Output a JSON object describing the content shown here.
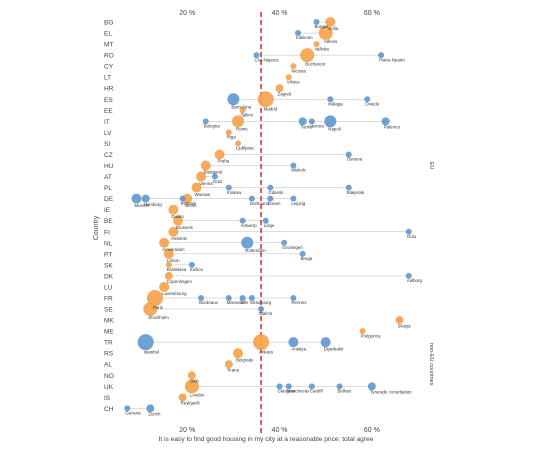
{
  "chart_data": {
    "type": "scatter",
    "xlabel": "It is easy to find good housing in my city at a reasonable price: total agree",
    "ylabel": "Country",
    "xlim": [
      5,
      70
    ],
    "x_ticks": [
      "20 %",
      "40 %",
      "60 %"
    ],
    "x_tick_values": [
      20,
      40,
      60
    ],
    "reference_line": {
      "x": 36,
      "style": "dashed",
      "color": "#d62728"
    },
    "group_labels": [
      {
        "text": "EU",
        "from": "BG",
        "to": "SE"
      },
      {
        "text": "non-EU countries",
        "from": "MK",
        "to": "CH"
      }
    ],
    "countries": [
      "BG",
      "EL",
      "MT",
      "RO",
      "CY",
      "LT",
      "HR",
      "ES",
      "EE",
      "IT",
      "LV",
      "SI",
      "CZ",
      "HU",
      "AT",
      "PL",
      "DE",
      "IE",
      "BE",
      "FI",
      "NL",
      "PT",
      "SK",
      "DK",
      "LU",
      "FR",
      "SE",
      "MK",
      "ME",
      "TR",
      "RS",
      "AL",
      "NO",
      "UK",
      "IS",
      "CH"
    ],
    "colors": {
      "capital": "#f5a14a",
      "other": "#5e97cf",
      "reference": "#d62728",
      "grid": "#bbbbbb",
      "text": "#444444"
    },
    "cities": [
      {
        "city": "Sofia",
        "country": "BG",
        "x": 51,
        "size": 5,
        "type": "capital"
      },
      {
        "city": "Burgas",
        "country": "BG",
        "x": 48,
        "size": 3,
        "type": "other"
      },
      {
        "city": "Athens",
        "country": "EL",
        "x": 50,
        "size": 7,
        "type": "capital"
      },
      {
        "city": "Irakleion",
        "country": "EL",
        "x": 44,
        "size": 3,
        "type": "other"
      },
      {
        "city": "Valletta",
        "country": "MT",
        "x": 48,
        "size": 3,
        "type": "capital"
      },
      {
        "city": "Cluj-Napoca",
        "country": "RO",
        "x": 35,
        "size": 3,
        "type": "other"
      },
      {
        "city": "Bucharest",
        "country": "RO",
        "x": 46,
        "size": 7,
        "type": "capital"
      },
      {
        "city": "Piatra Neamt",
        "country": "RO",
        "x": 62,
        "size": 3,
        "type": "other"
      },
      {
        "city": "Nicosia",
        "country": "CY",
        "x": 43,
        "size": 3,
        "type": "capital"
      },
      {
        "city": "Vilnius",
        "country": "LT",
        "x": 42,
        "size": 3,
        "type": "capital"
      },
      {
        "city": "Zagreb",
        "country": "HR",
        "x": 40,
        "size": 4,
        "type": "capital"
      },
      {
        "city": "Barcelona",
        "country": "ES",
        "x": 30,
        "size": 6,
        "type": "other"
      },
      {
        "city": "Madrid",
        "country": "ES",
        "x": 37,
        "size": 8,
        "type": "capital"
      },
      {
        "city": "Málaga",
        "country": "ES",
        "x": 51,
        "size": 3,
        "type": "other"
      },
      {
        "city": "Oviedo",
        "country": "ES",
        "x": 59,
        "size": 3,
        "type": "other"
      },
      {
        "city": "Tallinn",
        "country": "EE",
        "x": 32,
        "size": 3,
        "type": "capital"
      },
      {
        "city": "Rome",
        "country": "IT",
        "x": 31,
        "size": 6,
        "type": "capital"
      },
      {
        "city": "Torino",
        "country": "IT",
        "x": 45,
        "size": 4,
        "type": "other"
      },
      {
        "city": "Napoli",
        "country": "IT",
        "x": 51,
        "size": 6,
        "type": "other"
      },
      {
        "city": "Palermo",
        "country": "IT",
        "x": 63,
        "size": 4,
        "type": "other"
      },
      {
        "city": "Bologna",
        "country": "IT",
        "x": 24,
        "size": 3,
        "type": "other"
      },
      {
        "city": "Verona",
        "country": "IT",
        "x": 47,
        "size": 3,
        "type": "other"
      },
      {
        "city": "Riga",
        "country": "LV",
        "x": 29,
        "size": 3,
        "type": "capital"
      },
      {
        "city": "Ljubljana",
        "country": "SI",
        "x": 31,
        "size": 3,
        "type": "capital"
      },
      {
        "city": "Ostrava",
        "country": "CZ",
        "x": 55,
        "size": 3,
        "type": "other"
      },
      {
        "city": "Praha",
        "country": "CZ",
        "x": 27,
        "size": 5,
        "type": "capital"
      },
      {
        "city": "Miskolc",
        "country": "HU",
        "x": 43,
        "size": 3,
        "type": "other"
      },
      {
        "city": "Budapest",
        "country": "HU",
        "x": 24,
        "size": 5,
        "type": "capital"
      },
      {
        "city": "Graz",
        "country": "AT",
        "x": 26,
        "size": 3,
        "type": "other"
      },
      {
        "city": "Vienna",
        "country": "AT",
        "x": 23,
        "size": 5,
        "type": "capital"
      },
      {
        "city": "Warsaw",
        "country": "PL",
        "x": 22,
        "size": 5,
        "type": "capital"
      },
      {
        "city": "Gdansk",
        "country": "PL",
        "x": 38,
        "size": 3,
        "type": "other"
      },
      {
        "city": "Białystok",
        "country": "PL",
        "x": 55,
        "size": 3,
        "type": "other"
      },
      {
        "city": "Krakow",
        "country": "PL",
        "x": 29,
        "size": 3,
        "type": "other"
      },
      {
        "city": "Hamburg",
        "country": "DE",
        "x": 11,
        "size": 4,
        "type": "other"
      },
      {
        "city": "Rostock",
        "country": "DE",
        "x": 19,
        "size": 3,
        "type": "other"
      },
      {
        "city": "Essen",
        "country": "DE",
        "x": 38,
        "size": 3,
        "type": "other"
      },
      {
        "city": "Leipzig",
        "country": "DE",
        "x": 43,
        "size": 3,
        "type": "other"
      },
      {
        "city": "Munich",
        "country": "DE",
        "x": 9,
        "size": 5,
        "type": "other"
      },
      {
        "city": "Berlin",
        "country": "DE",
        "x": 20,
        "size": 5,
        "type": "capital"
      },
      {
        "city": "Dortmund",
        "country": "DE",
        "x": 34,
        "size": 3,
        "type": "other"
      },
      {
        "city": "Dublin",
        "country": "IE",
        "x": 17,
        "size": 5,
        "type": "capital"
      },
      {
        "city": "Antwerp",
        "country": "BE",
        "x": 32,
        "size": 3,
        "type": "other"
      },
      {
        "city": "Brussels",
        "country": "BE",
        "x": 18,
        "size": 5,
        "type": "capital"
      },
      {
        "city": "Liège",
        "country": "BE",
        "x": 37,
        "size": 3,
        "type": "other"
      },
      {
        "city": "Oulu",
        "country": "FI",
        "x": 68,
        "size": 3,
        "type": "other"
      },
      {
        "city": "Helsinki",
        "country": "FI",
        "x": 17,
        "size": 5,
        "type": "capital"
      },
      {
        "city": "Rotterdam",
        "country": "NL",
        "x": 33,
        "size": 6,
        "type": "other"
      },
      {
        "city": "Groningen",
        "country": "NL",
        "x": 41,
        "size": 3,
        "type": "other"
      },
      {
        "city": "Amsterdam",
        "country": "NL",
        "x": 15,
        "size": 5,
        "type": "capital"
      },
      {
        "city": "Braga",
        "country": "PT",
        "x": 45,
        "size": 3,
        "type": "other"
      },
      {
        "city": "Lisbon",
        "country": "PT",
        "x": 16,
        "size": 5,
        "type": "capital"
      },
      {
        "city": "Bratislava",
        "country": "SK",
        "x": 16,
        "size": 3,
        "type": "capital"
      },
      {
        "city": "Košice",
        "country": "SK",
        "x": 21,
        "size": 3,
        "type": "other"
      },
      {
        "city": "Copenhagen",
        "country": "DK",
        "x": 16,
        "size": 4,
        "type": "capital"
      },
      {
        "city": "Aalborg",
        "country": "DK",
        "x": 68,
        "size": 3,
        "type": "other"
      },
      {
        "city": "Luxembourg",
        "country": "LU",
        "x": 15,
        "size": 5,
        "type": "capital"
      },
      {
        "city": "Marseille",
        "country": "FR",
        "x": 29,
        "size": 3,
        "type": "other"
      },
      {
        "city": "Strasbourg",
        "country": "FR",
        "x": 34,
        "size": 3,
        "type": "other"
      },
      {
        "city": "Bordeaux",
        "country": "FR",
        "x": 23,
        "size": 3,
        "type": "other"
      },
      {
        "city": "Lille",
        "country": "FR",
        "x": 32,
        "size": 3,
        "type": "other"
      },
      {
        "city": "Rennes",
        "country": "FR",
        "x": 43,
        "size": 3,
        "type": "other"
      },
      {
        "city": "Paris",
        "country": "FR",
        "x": 13,
        "size": 8,
        "type": "capital"
      },
      {
        "city": "Stockholm",
        "country": "SE",
        "x": 12,
        "size": 7,
        "type": "capital"
      },
      {
        "city": "Malmö",
        "country": "SE",
        "x": 36,
        "size": 3,
        "type": "other"
      },
      {
        "city": "Skopje",
        "country": "MK",
        "x": 66,
        "size": 4,
        "type": "capital"
      },
      {
        "city": "Podgorica",
        "country": "ME",
        "x": 58,
        "size": 3,
        "type": "capital"
      },
      {
        "city": "Antalya",
        "country": "TR",
        "x": 43,
        "size": 5,
        "type": "other"
      },
      {
        "city": "Diyarbakir",
        "country": "TR",
        "x": 50,
        "size": 5,
        "type": "other"
      },
      {
        "city": "Istanbul",
        "country": "TR",
        "x": 11,
        "size": 8,
        "type": "other"
      },
      {
        "city": "Ankara",
        "country": "TR",
        "x": 36,
        "size": 8,
        "type": "capital"
      },
      {
        "city": "Belgrade",
        "country": "RS",
        "x": 31,
        "size": 5,
        "type": "capital"
      },
      {
        "city": "Tirana",
        "country": "AL",
        "x": 29,
        "size": 4,
        "type": "capital"
      },
      {
        "city": "Oslo",
        "country": "NO",
        "x": 21,
        "size": 4,
        "type": "capital"
      },
      {
        "city": "Manchester",
        "country": "UK",
        "x": 42,
        "size": 3,
        "type": "other"
      },
      {
        "city": "Tyneside conurbation",
        "country": "UK",
        "x": 60,
        "size": 4,
        "type": "other"
      },
      {
        "city": "London",
        "country": "UK",
        "x": 21,
        "size": 7,
        "type": "capital"
      },
      {
        "city": "Glasgow",
        "country": "UK",
        "x": 40,
        "size": 3,
        "type": "other"
      },
      {
        "city": "Cardiff",
        "country": "UK",
        "x": 47,
        "size": 3,
        "type": "other"
      },
      {
        "city": "Belfast",
        "country": "UK",
        "x": 53,
        "size": 3,
        "type": "other"
      },
      {
        "city": "Reykjavík",
        "country": "IS",
        "x": 19,
        "size": 4,
        "type": "capital"
      },
      {
        "city": "Geneva",
        "country": "CH",
        "x": 7,
        "size": 3,
        "type": "other"
      },
      {
        "city": "Zurich",
        "country": "CH",
        "x": 12,
        "size": 4,
        "type": "other"
      }
    ]
  }
}
